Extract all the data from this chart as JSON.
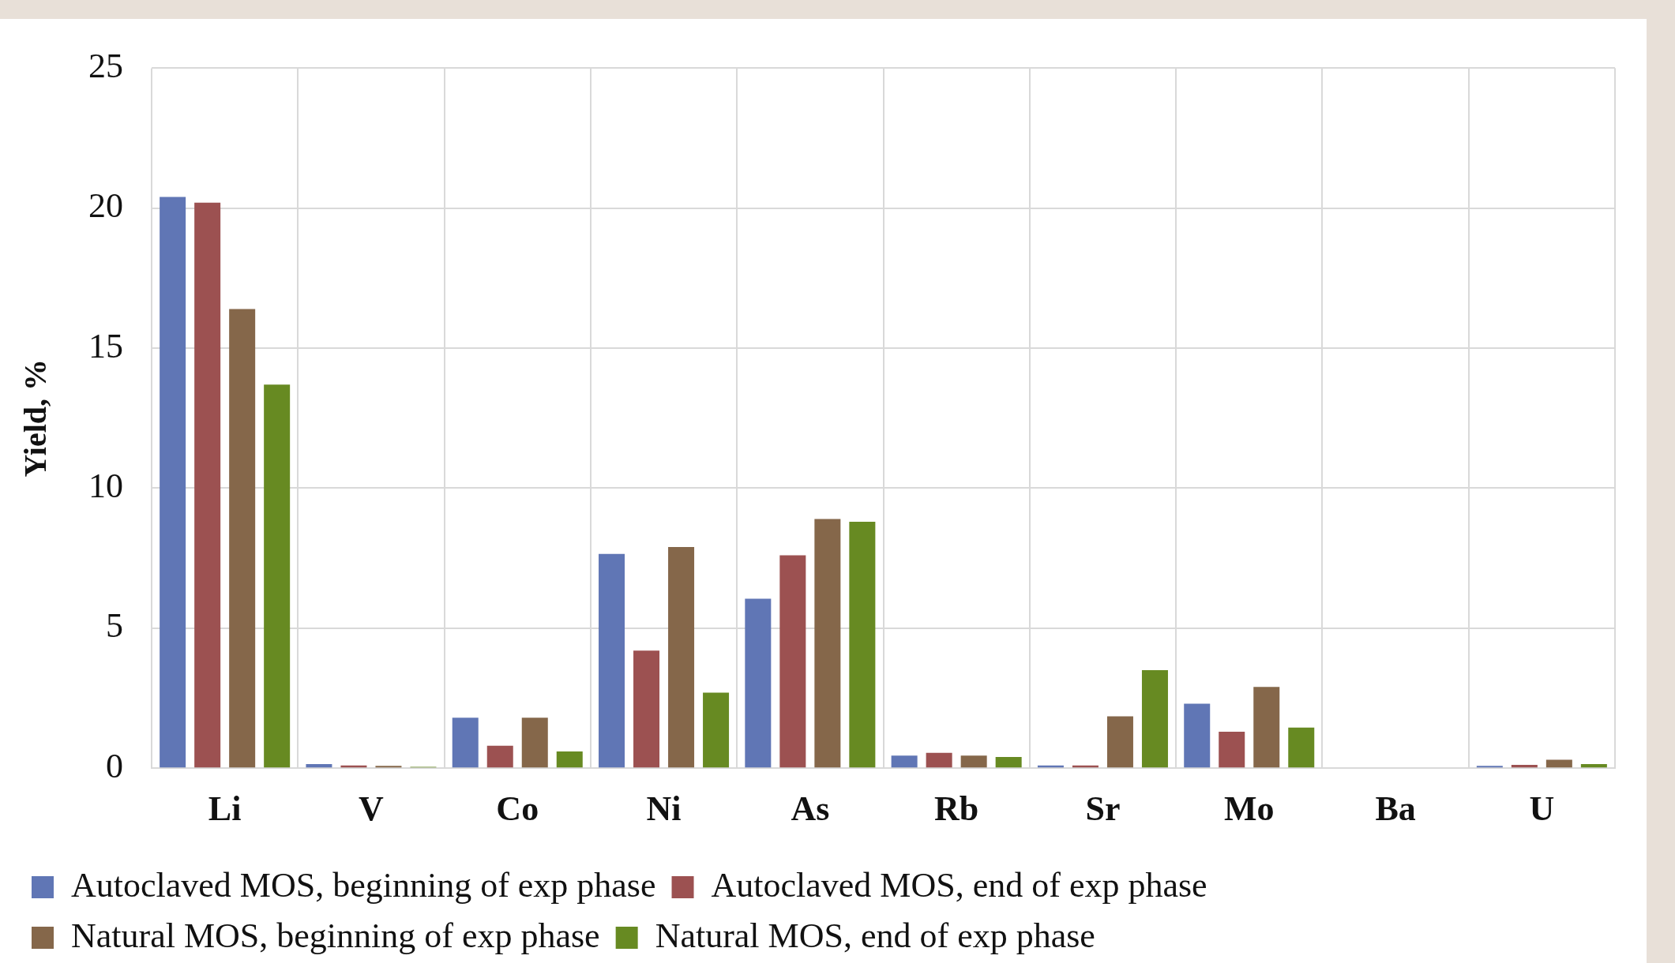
{
  "chart_data": {
    "type": "bar",
    "ylabel": "Yield, %",
    "categories": [
      "Li",
      "V",
      "Co",
      "Ni",
      "As",
      "Rb",
      "Sr",
      "Mo",
      "Ba",
      "U"
    ],
    "series": [
      {
        "name": "Autoclaved MOS, beginning of exp phase",
        "color": "#6076b5",
        "values": [
          20.4,
          0.15,
          1.8,
          7.65,
          6.05,
          0.45,
          0.1,
          2.3,
          0,
          0.08
        ]
      },
      {
        "name": "Autoclaved MOS, end of exp phase",
        "color": "#9c5151",
        "values": [
          20.2,
          0.1,
          0.8,
          4.2,
          7.6,
          0.55,
          0.1,
          1.3,
          0,
          0.12
        ]
      },
      {
        "name": "Natural MOS, beginning of exp phase",
        "color": "#85674a",
        "values": [
          16.4,
          0.08,
          1.8,
          7.9,
          8.9,
          0.45,
          1.85,
          2.9,
          null,
          0.3
        ]
      },
      {
        "name": "Natural MOS, end of exp phase",
        "color": "#678a22",
        "values": [
          13.7,
          0.05,
          0.6,
          2.7,
          8.8,
          0.4,
          3.5,
          1.45,
          0,
          0.15
        ]
      }
    ],
    "ylim": [
      0,
      25
    ],
    "yticks": [
      0,
      5,
      10,
      15,
      20,
      25
    ],
    "grid": true,
    "legend": "bottom"
  }
}
